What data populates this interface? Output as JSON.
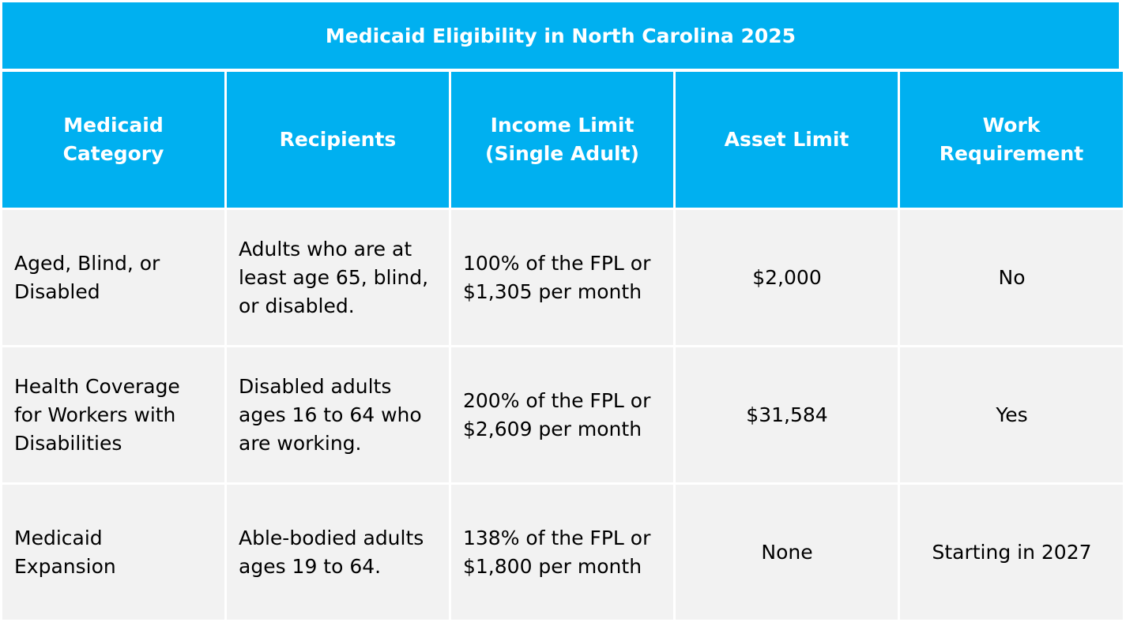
{
  "title": "Medicaid Eligibility in North Carolina 2025",
  "headers": {
    "category": "Medicaid Category",
    "recipients": "Recipients",
    "income": "Income Limit (Single Adult)",
    "asset": "Asset Limit",
    "work": "Work Requirement"
  },
  "rows": [
    {
      "category": "Aged, Blind, or Disabled",
      "recipients": "Adults who are at least age 65, blind, or disabled.",
      "income": "100% of the FPL or $1,305 per month",
      "asset": "$2,000",
      "work": "No"
    },
    {
      "category": "Health Coverage for Workers with Disabilities",
      "recipients": "Disabled adults ages 16 to 64 who are working.",
      "income": "200% of the FPL or $2,609 per month",
      "asset": "$31,584",
      "work": "Yes"
    },
    {
      "category": "Medicaid Expansion",
      "recipients": "Able-bodied adults ages 19 to 64.",
      "income": "138% of the FPL or $1,800 per month",
      "asset": "None",
      "work": "Starting in 2027"
    }
  ],
  "colors": {
    "header_bg": "#00b0f0",
    "header_text": "#ffffff",
    "body_bg": "#f2f2f2",
    "body_text": "#000000"
  }
}
